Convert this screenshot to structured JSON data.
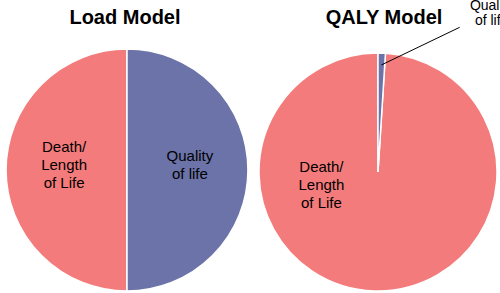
{
  "chart_data": [
    {
      "type": "pie",
      "title": "Load Model",
      "categories": [
        "Death/Length of Life",
        "Quality of life"
      ],
      "values": [
        50,
        50
      ],
      "colors": [
        "#f47b7b",
        "#6b73a8"
      ]
    },
    {
      "type": "pie",
      "title": "QALY Model",
      "categories": [
        "Death/Length of Life",
        "Quality of life"
      ],
      "values": [
        99,
        1
      ],
      "colors": [
        "#f47b7b",
        "#6b73a8"
      ]
    }
  ]
}
